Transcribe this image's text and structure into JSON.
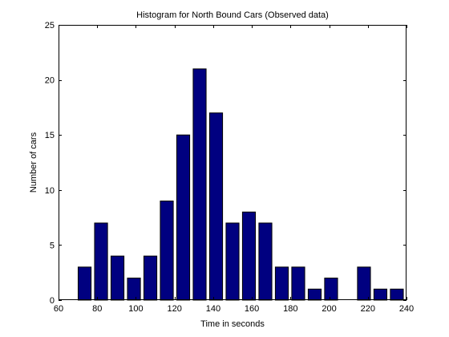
{
  "chart_data": {
    "type": "bar",
    "title": "Histogram for North Bound Cars (Observed data)",
    "xlabel": "Time in seconds",
    "ylabel": "Number of cars",
    "xlim": [
      60,
      240
    ],
    "ylim": [
      0,
      25
    ],
    "xticks": [
      60,
      80,
      100,
      120,
      140,
      160,
      180,
      200,
      220,
      240
    ],
    "yticks": [
      0,
      5,
      10,
      15,
      20,
      25
    ],
    "x": [
      73.5,
      82,
      90.5,
      99,
      107.5,
      116,
      124.5,
      133,
      141.5,
      150,
      158.5,
      167,
      175.5,
      184,
      192.5,
      201,
      209.5,
      218,
      226.5,
      235
    ],
    "values": [
      3,
      7,
      4,
      2,
      4,
      9,
      15,
      21,
      17,
      7,
      8,
      7,
      3,
      3,
      1,
      2,
      0,
      3,
      1,
      1
    ],
    "bar_width": 6.7,
    "bar_color": "#000080",
    "grid": false,
    "legend": "none"
  }
}
